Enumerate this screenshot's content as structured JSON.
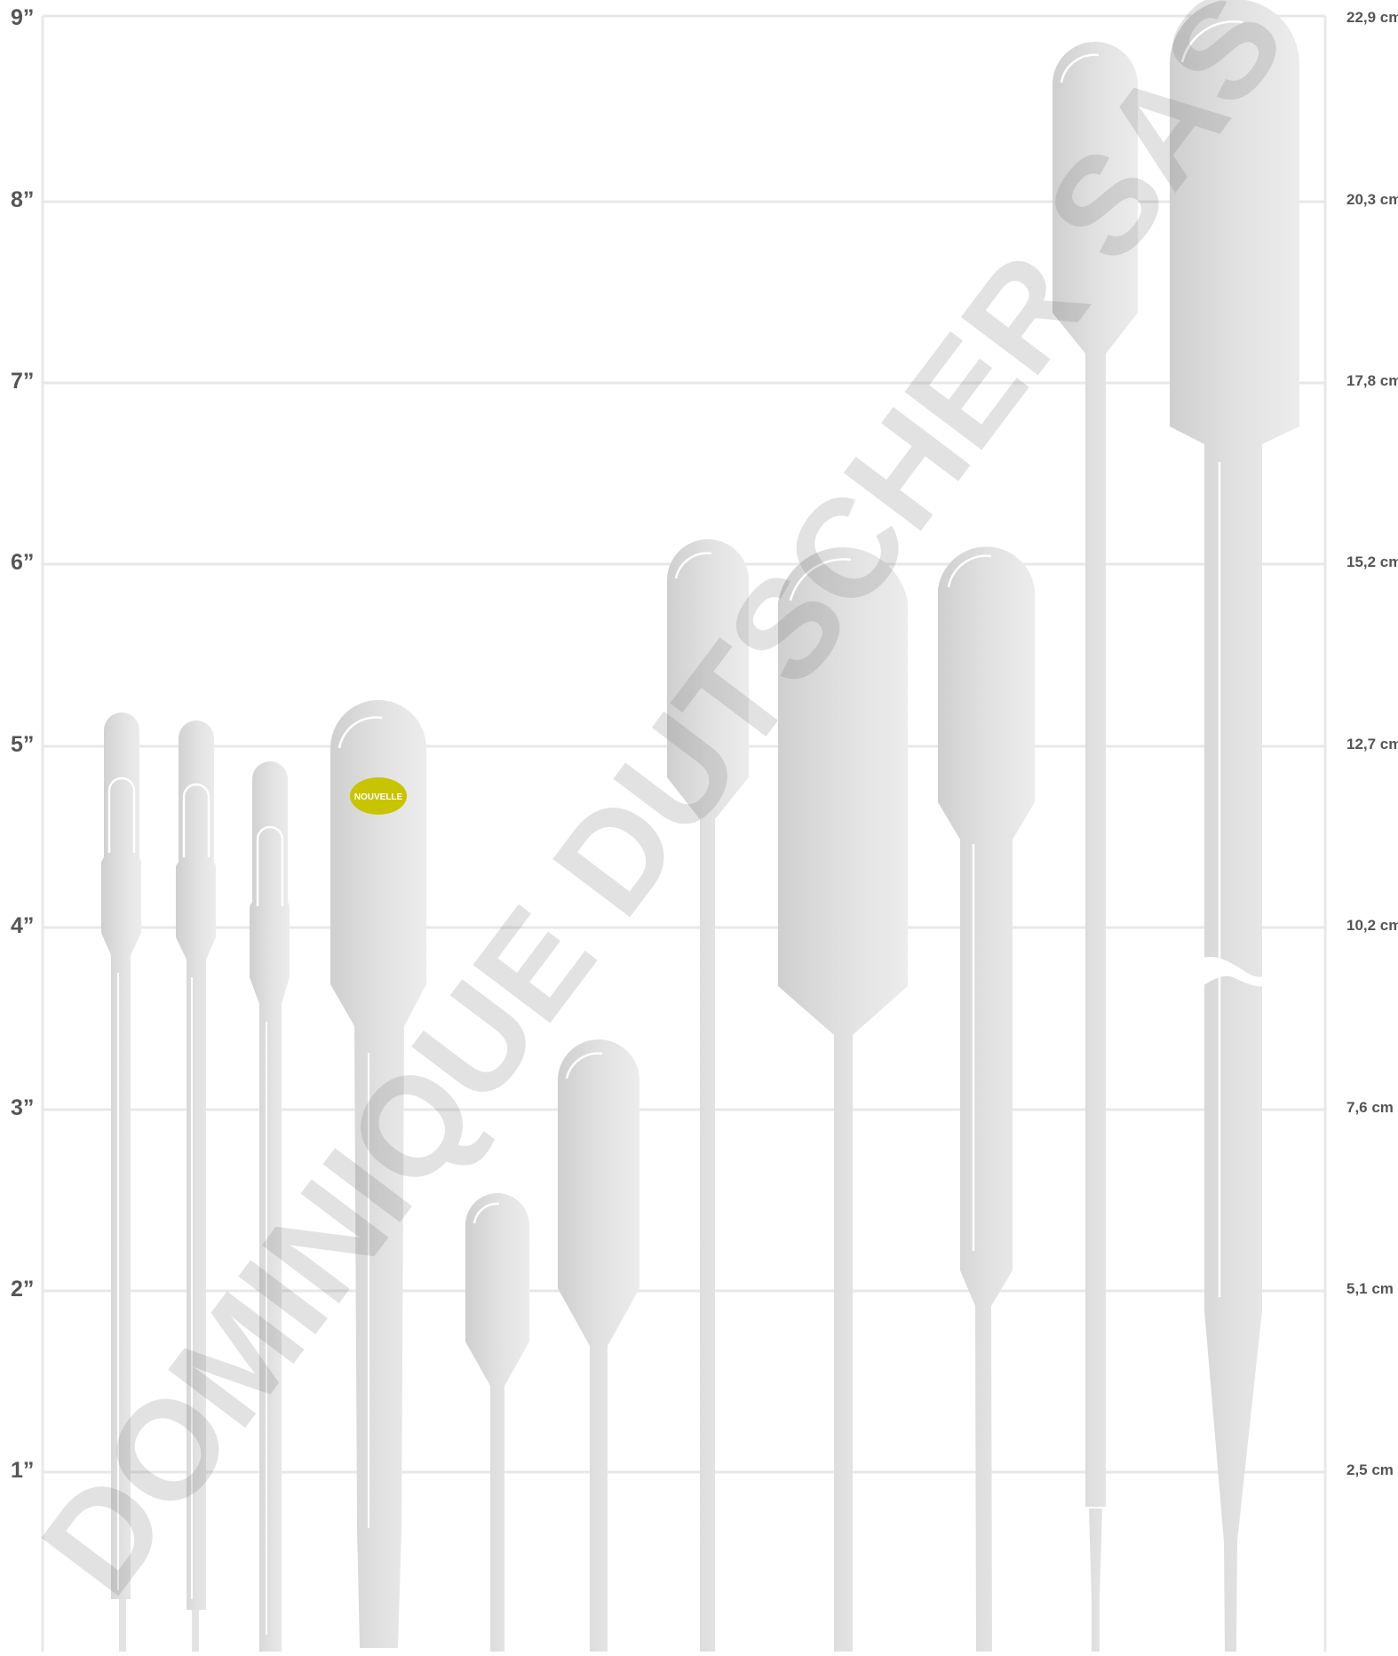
{
  "scale": {
    "inch_labels": [
      "9”",
      "8”",
      "7”",
      "6”",
      "5”",
      "4”",
      "3”",
      "2”",
      "1”"
    ],
    "cm_labels": [
      "22,9 cm",
      "20,3 cm",
      "17,8 cm",
      "15,2 cm",
      "12,7 cm",
      "10,2 cm",
      "7,6 cm",
      "5,1 cm",
      "2,5 cm"
    ]
  },
  "badge": {
    "text": "NOUVELLE",
    "color": "#c8c400"
  },
  "watermark": {
    "text": "DOMINIQUE DUTSCHER SAS"
  },
  "colors": {
    "pipette_light": "#ececec",
    "pipette_dark": "#cdcdcd",
    "grid": "#e8e8e8",
    "label": "#555555"
  }
}
